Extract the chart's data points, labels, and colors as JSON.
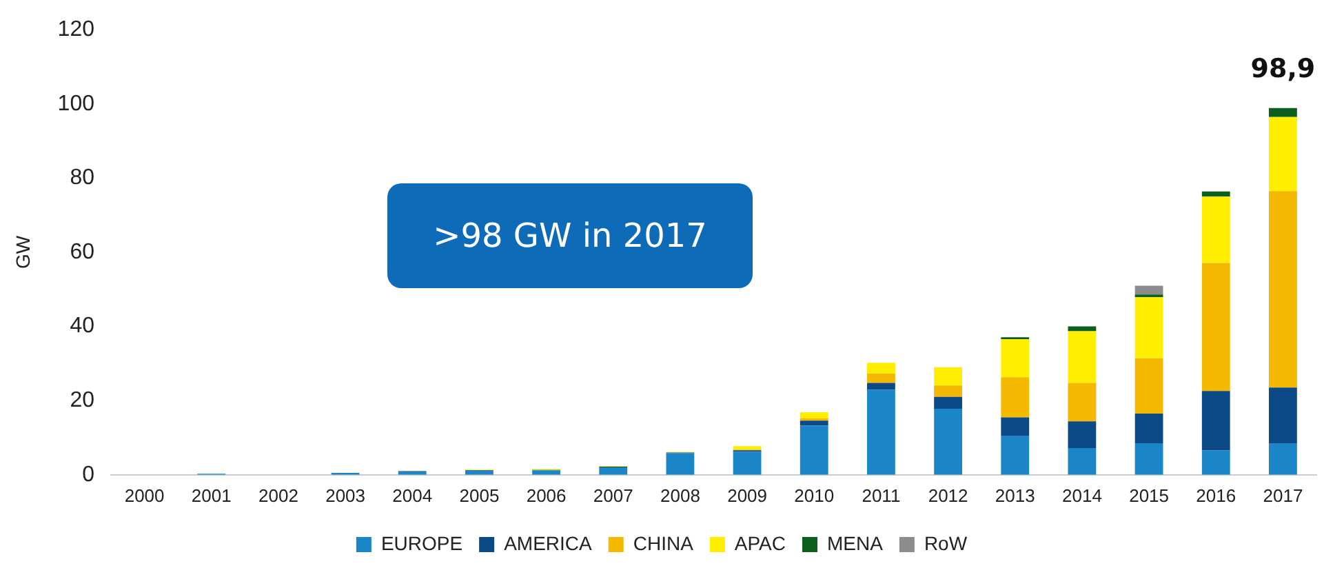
{
  "chart_data": {
    "type": "bar",
    "stacked": true,
    "ylabel": "GW",
    "categories": [
      "2000",
      "2001",
      "2002",
      "2003",
      "2004",
      "2005",
      "2006",
      "2007",
      "2008",
      "2009",
      "2010",
      "2011",
      "2012",
      "2013",
      "2014",
      "2015",
      "2016",
      "2017"
    ],
    "series": [
      {
        "name": "EUROPE",
        "color": "#1a86c8",
        "values": [
          null,
          0.3,
          null,
          0.5,
          0.9,
          1.1,
          1.2,
          2.0,
          5.8,
          6.2,
          13.3,
          22.9,
          17.8,
          10.4,
          7.2,
          8.5,
          6.6,
          8.5
        ]
      },
      {
        "name": "AMERICA",
        "color": "#0b4a86",
        "values": [
          0,
          0,
          0,
          0,
          0.1,
          0.1,
          0.1,
          0.2,
          0.2,
          0.4,
          1.3,
          1.9,
          3.2,
          5.1,
          7.2,
          8.0,
          16.0,
          15.0
        ]
      },
      {
        "name": "CHINA",
        "color": "#f5b800",
        "values": [
          0,
          0,
          0,
          0,
          0,
          0,
          0,
          0,
          0,
          0.2,
          0.6,
          2.5,
          3.1,
          10.8,
          10.4,
          14.9,
          34.5,
          53.0
        ]
      },
      {
        "name": "APAC",
        "color": "#ffee00",
        "values": [
          0,
          0,
          0,
          null,
          0.1,
          0.2,
          0.3,
          0.2,
          0.2,
          0.9,
          1.7,
          2.9,
          4.9,
          10.3,
          13.9,
          16.5,
          17.9,
          20.0
        ]
      },
      {
        "name": "MENA",
        "color": "#0b5e1e",
        "values": [
          0,
          0,
          0,
          0,
          0,
          0,
          0,
          0,
          0,
          0,
          0,
          0,
          0,
          0.5,
          1.3,
          0.7,
          1.4,
          2.4
        ]
      },
      {
        "name": "RoW",
        "color": "#8c8c8c",
        "values": [
          0,
          0,
          0,
          0,
          0,
          0,
          0,
          0,
          0,
          0,
          0,
          0,
          0,
          0,
          0,
          2.4,
          0,
          0
        ]
      }
    ],
    "totals": [
      null,
      null,
      null,
      null,
      null,
      null,
      null,
      null,
      null,
      null,
      null,
      null,
      null,
      null,
      null,
      null,
      null,
      "98,9"
    ],
    "ylim": [
      0,
      120
    ],
    "yticks": [
      0,
      20,
      40,
      60,
      80,
      100,
      120
    ],
    "grid": false,
    "legend": "bottom",
    "annotations": [
      ">98 GW in 2017"
    ]
  }
}
